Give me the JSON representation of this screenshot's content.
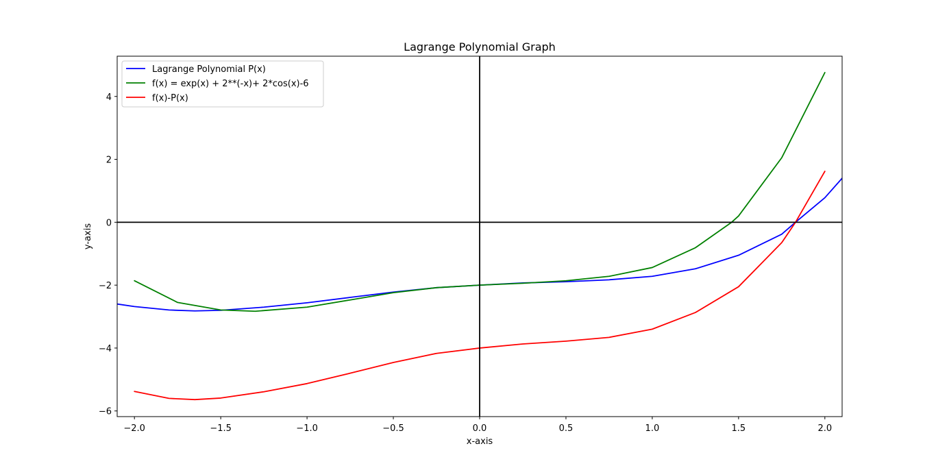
{
  "chart_data": {
    "type": "line",
    "title": "Lagrange Polynomial Graph",
    "xlabel": "x-axis",
    "ylabel": "y-axis",
    "xlim": [
      -2.1,
      2.1
    ],
    "ylim": [
      -6.18,
      5.28
    ],
    "xticks": [
      -2.0,
      -1.5,
      -1.0,
      -0.5,
      0.0,
      0.5,
      1.0,
      1.5,
      2.0
    ],
    "xtick_labels": [
      "−2.0",
      "−1.5",
      "−1.0",
      "−0.5",
      "0.0",
      "0.5",
      "1.0",
      "1.5",
      "2.0"
    ],
    "yticks": [
      -6,
      -4,
      -2,
      0,
      2,
      4
    ],
    "ytick_labels": [
      "−6",
      "−4",
      "−2",
      "0",
      "2",
      "4"
    ],
    "reference_lines": {
      "x": 0,
      "y": 0,
      "color": "#000000"
    },
    "legend": {
      "position": "top-left"
    },
    "series": [
      {
        "name": "Lagrange Polynomial P(x)",
        "color": "#0000ff",
        "x": [
          -2.1,
          -2.0,
          -1.8,
          -1.65,
          -1.5,
          -1.25,
          -1.0,
          -0.75,
          -0.5,
          -0.25,
          0.0,
          0.25,
          0.5,
          0.75,
          1.0,
          1.25,
          1.5,
          1.75,
          1.83,
          2.0,
          2.1
        ],
        "y": [
          -2.6,
          -2.68,
          -2.79,
          -2.82,
          -2.8,
          -2.7,
          -2.56,
          -2.39,
          -2.22,
          -2.08,
          -2.0,
          -1.93,
          -1.89,
          -1.83,
          -1.72,
          -1.48,
          -1.05,
          -0.38,
          0.0,
          0.78,
          1.4
        ]
      },
      {
        "name": "f(x) = exp(x) + 2**(-x)+ 2*cos(x)-6",
        "color": "#008000",
        "x": [
          -2.0,
          -1.75,
          -1.5,
          -1.3,
          -1.0,
          -0.75,
          -0.5,
          -0.25,
          0.0,
          0.25,
          0.5,
          0.75,
          1.0,
          1.25,
          1.46,
          1.5,
          1.75,
          2.0
        ],
        "y": [
          -1.86,
          -2.55,
          -2.79,
          -2.83,
          -2.7,
          -2.47,
          -2.24,
          -2.08,
          -2.0,
          -1.94,
          -1.86,
          -1.72,
          -1.44,
          -0.81,
          0.0,
          0.2,
          2.05,
          4.76
        ]
      },
      {
        "name": "f(x)-P(x)",
        "color": "#ff0000",
        "x": [
          -2.0,
          -1.8,
          -1.65,
          -1.5,
          -1.25,
          -1.0,
          -0.75,
          -0.5,
          -0.25,
          0.0,
          0.25,
          0.5,
          0.75,
          1.0,
          1.25,
          1.5,
          1.75,
          1.83,
          2.0
        ],
        "y": [
          -5.38,
          -5.6,
          -5.64,
          -5.59,
          -5.39,
          -5.13,
          -4.8,
          -4.46,
          -4.17,
          -4.0,
          -3.87,
          -3.78,
          -3.66,
          -3.4,
          -2.87,
          -2.05,
          -0.65,
          0.0,
          1.62
        ]
      }
    ]
  }
}
